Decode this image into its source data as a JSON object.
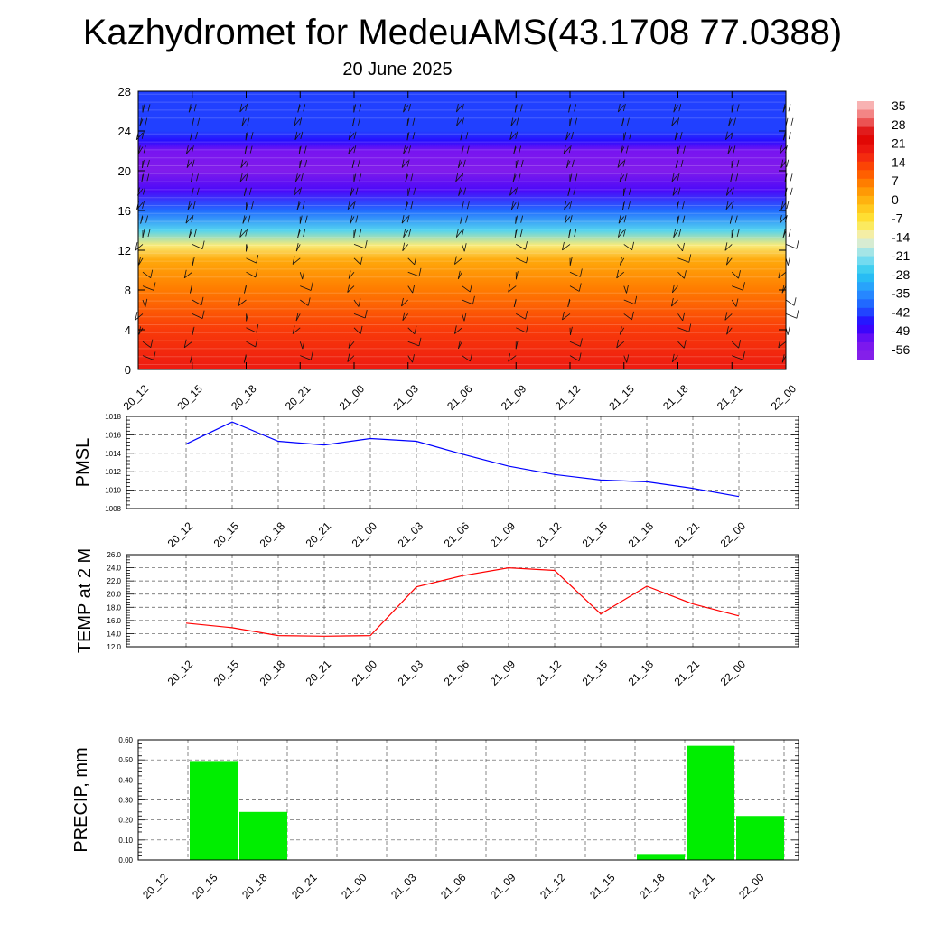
{
  "title": "Kazhydromet for MedeuAMS(43.1708 77.0388)",
  "subtitle": "20 June 2025",
  "colors": {
    "pmsl_line": "#0000ff",
    "temp_line": "#ff0000",
    "precip_bar": "#00ee00"
  },
  "chart_data": [
    {
      "type": "heatmap",
      "name": "upper-air-temperature-wind",
      "categories": [
        "20_12",
        "20_15",
        "20_18",
        "20_21",
        "21_00",
        "21_03",
        "21_06",
        "21_09",
        "21_12",
        "21_15",
        "21_18",
        "21_21",
        "22_00"
      ],
      "ylim": [
        0,
        28
      ],
      "yticks": [
        "0",
        "4",
        "8",
        "12",
        "16",
        "20",
        "24",
        "28"
      ],
      "colorbar_labels": [
        "35",
        "28",
        "21",
        "14",
        "7",
        "0",
        "-7",
        "-14",
        "-21",
        "-28",
        "-35",
        "-42",
        "-49",
        "-56"
      ],
      "colorbar_range": [
        -63,
        42
      ],
      "temperature_profile": [
        [
          0,
          22
        ],
        [
          4,
          17
        ],
        [
          8,
          9
        ],
        [
          11,
          3
        ],
        [
          12.5,
          -10
        ],
        [
          14,
          -25
        ],
        [
          16,
          -40
        ],
        [
          18,
          -52
        ],
        [
          20,
          -60
        ],
        [
          22,
          -56
        ],
        [
          23,
          -48
        ],
        [
          24,
          -44
        ],
        [
          28,
          -44
        ]
      ]
    },
    {
      "type": "line",
      "name": "pmsl",
      "ylabel": "PMSL",
      "categories": [
        "20_12",
        "20_15",
        "20_18",
        "20_21",
        "21_00",
        "21_03",
        "21_06",
        "21_09",
        "21_12",
        "21_15",
        "21_18",
        "21_21",
        "22_00"
      ],
      "values": [
        1015.0,
        1017.4,
        1015.3,
        1014.9,
        1015.6,
        1015.3,
        1013.9,
        1012.6,
        1011.7,
        1011.1,
        1010.9,
        1010.2,
        1009.3
      ],
      "ylim": [
        1008,
        1018
      ],
      "yticks": [
        "1008",
        "1010",
        "1012",
        "1014",
        "1016",
        "1018"
      ]
    },
    {
      "type": "line",
      "name": "temperature-2m",
      "ylabel": "TEMP at 2 M",
      "categories": [
        "20_12",
        "20_15",
        "20_18",
        "20_21",
        "21_00",
        "21_03",
        "21_06",
        "21_09",
        "21_12",
        "21_15",
        "21_18",
        "21_21",
        "22_00"
      ],
      "values": [
        15.6,
        14.9,
        13.7,
        13.6,
        13.7,
        21.1,
        22.8,
        24.0,
        23.6,
        17.0,
        21.2,
        18.5,
        16.7
      ],
      "ylim": [
        12.0,
        26.0
      ],
      "yticks": [
        "12.0",
        "14.0",
        "16.0",
        "18.0",
        "20.0",
        "22.0",
        "24.0",
        "26.0"
      ]
    },
    {
      "type": "bar",
      "name": "precipitation",
      "ylabel": "PRECIP, mm",
      "categories": [
        "20_12",
        "20_15",
        "20_18",
        "20_21",
        "21_00",
        "21_03",
        "21_06",
        "21_09",
        "21_12",
        "21_15",
        "21_18",
        "21_21",
        "22_00"
      ],
      "values": [
        0,
        0.49,
        0.24,
        0,
        0,
        0,
        0,
        0,
        0,
        0,
        0.03,
        0.57,
        0.22
      ],
      "ylim": [
        0,
        0.6
      ],
      "yticks": [
        "0.00",
        "0.10",
        "0.20",
        "0.30",
        "0.40",
        "0.50",
        "0.60"
      ]
    }
  ]
}
